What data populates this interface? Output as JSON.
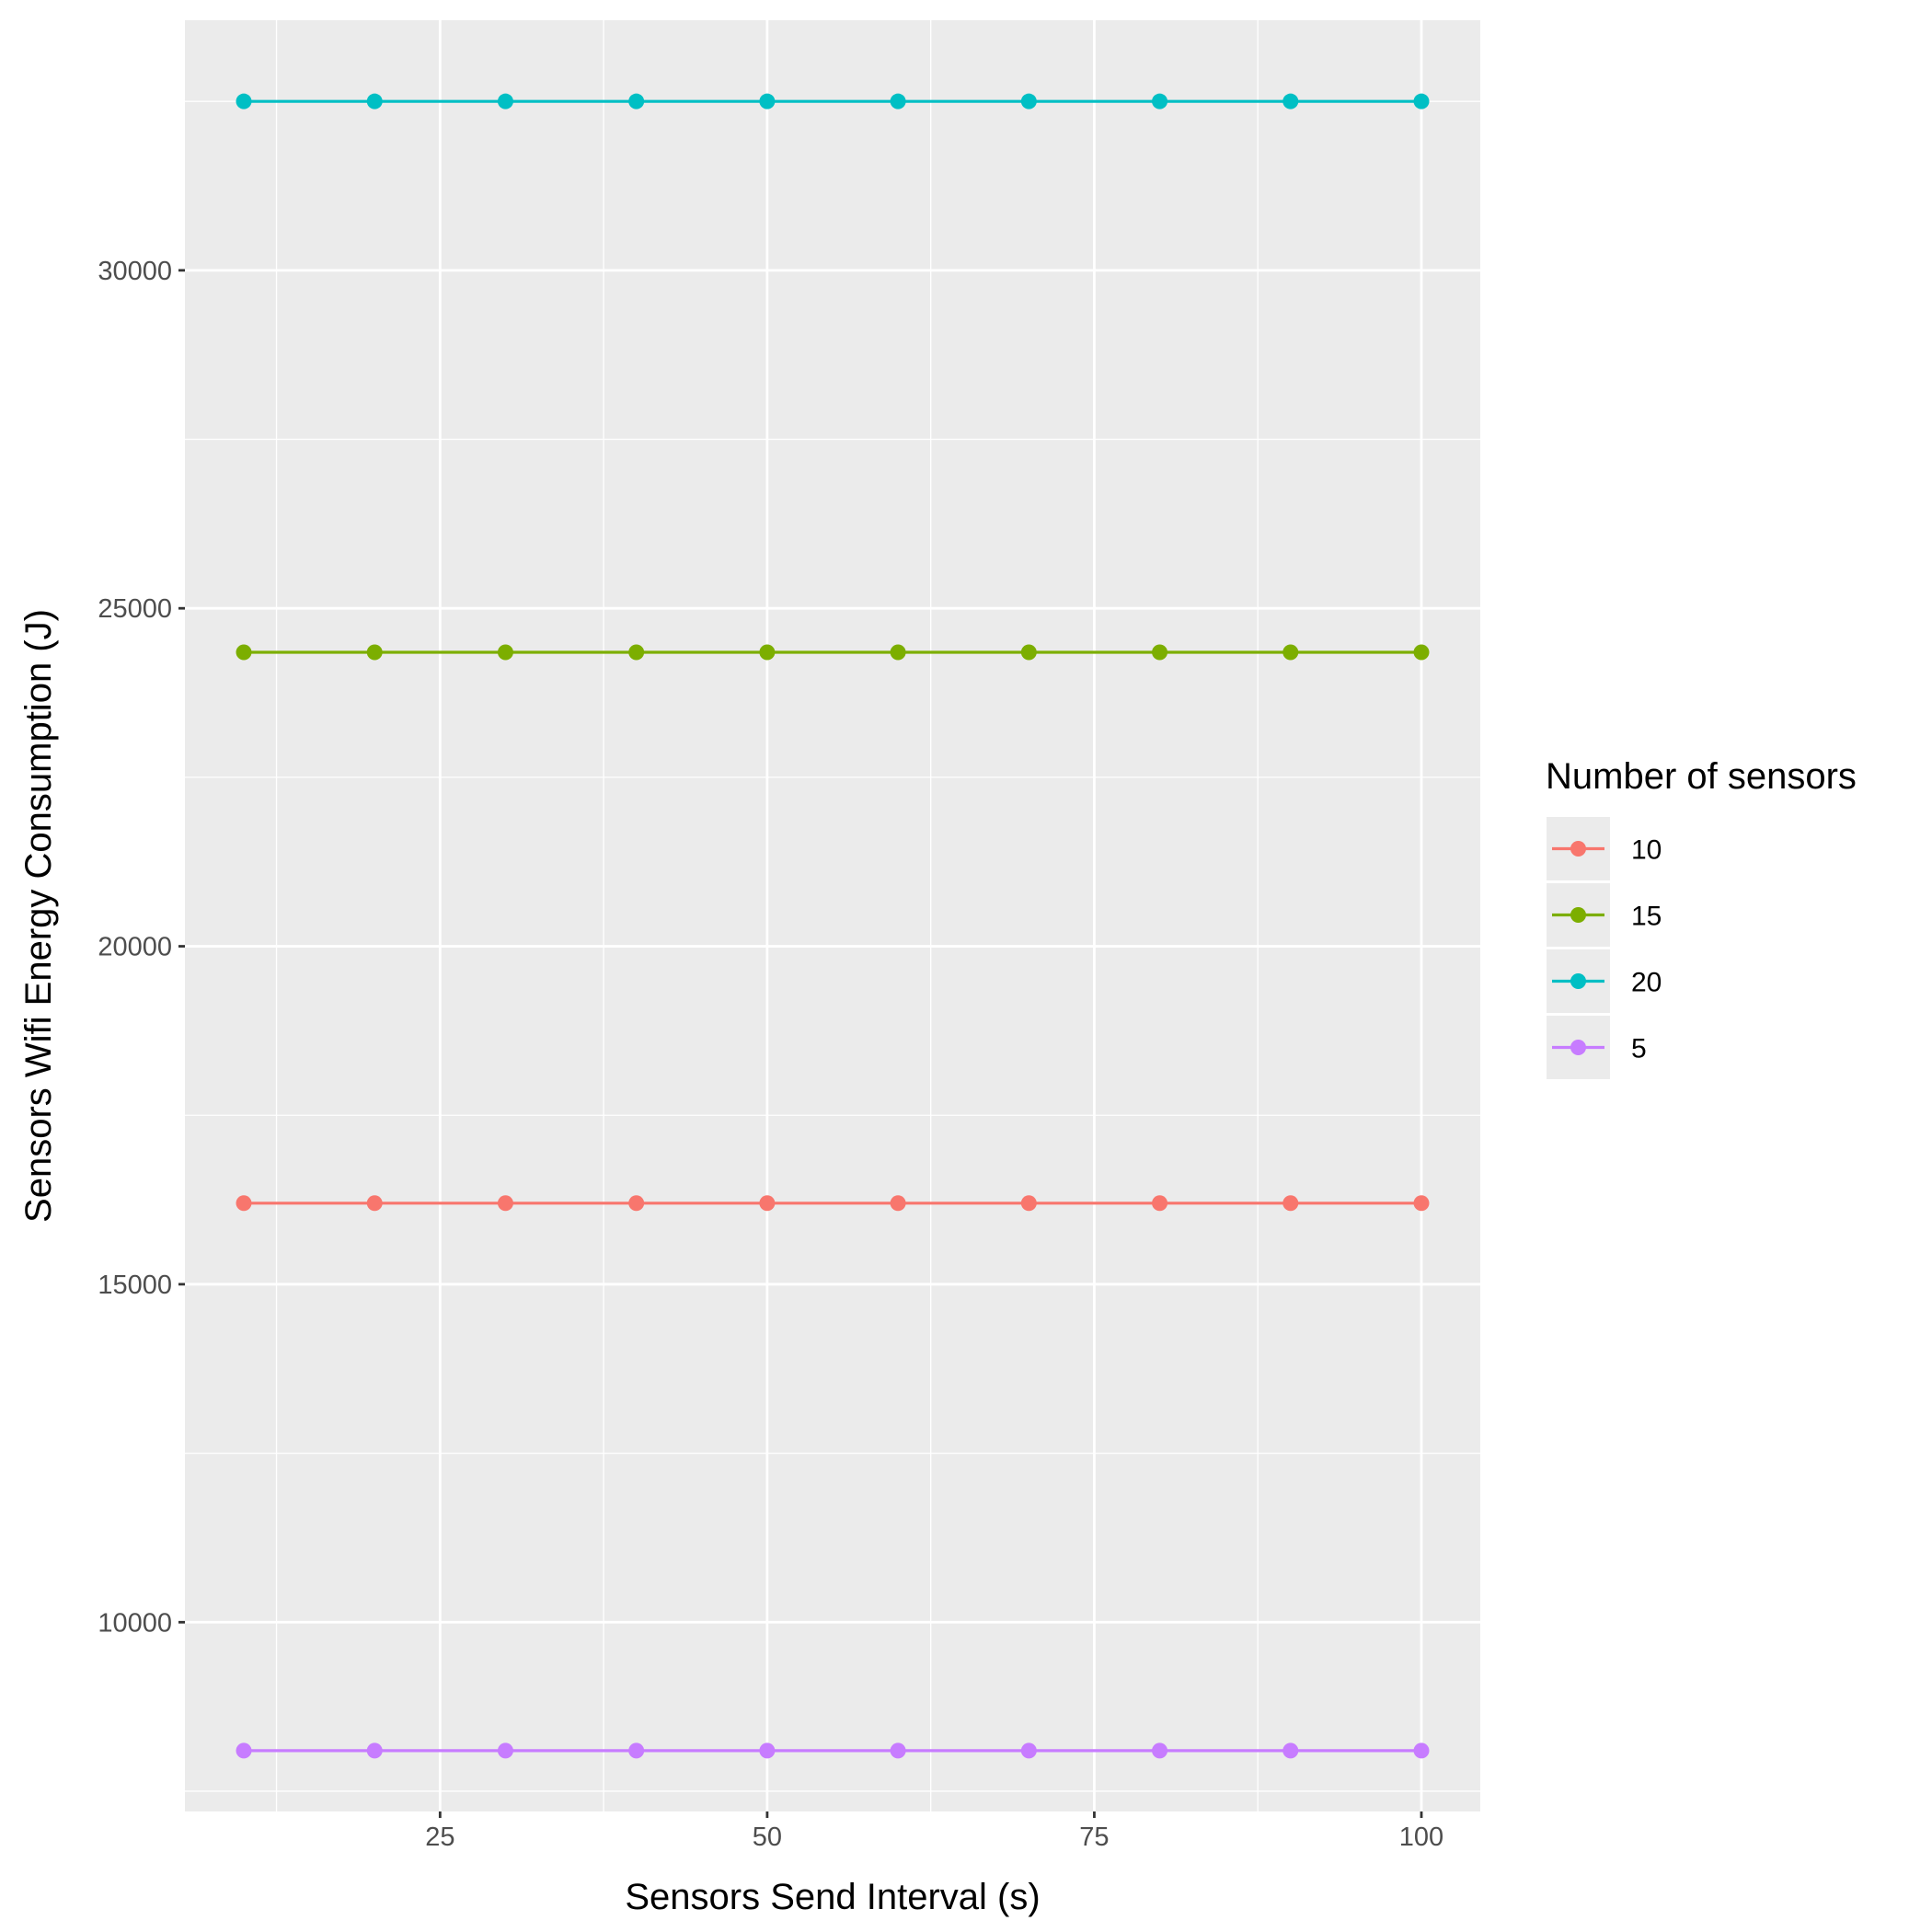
{
  "chart_data": {
    "type": "line",
    "x": [
      10,
      20,
      30,
      40,
      50,
      60,
      70,
      80,
      90,
      100
    ],
    "series": [
      {
        "name": "10",
        "color": "#F8766D",
        "values": [
          16200,
          16200,
          16200,
          16200,
          16200,
          16200,
          16200,
          16200,
          16200,
          16200
        ]
      },
      {
        "name": "15",
        "color": "#7CAE00",
        "values": [
          24350,
          24350,
          24350,
          24350,
          24350,
          24350,
          24350,
          24350,
          24350,
          24350
        ]
      },
      {
        "name": "20",
        "color": "#00BFC4",
        "values": [
          32500,
          32500,
          32500,
          32500,
          32500,
          32500,
          32500,
          32500,
          32500,
          32500
        ]
      },
      {
        "name": "5",
        "color": "#C77CFF",
        "values": [
          8100,
          8100,
          8100,
          8100,
          8100,
          8100,
          8100,
          8100,
          8100,
          8100
        ]
      }
    ],
    "title": "",
    "xlabel": "Sensors Send Interval (s)",
    "ylabel": "Sensors Wifi Energy Consumption (J)",
    "xlim": [
      5.5,
      104.5
    ],
    "ylim": [
      7200,
      33700
    ],
    "xticks": [
      25,
      50,
      75,
      100
    ],
    "yticks": [
      10000,
      15000,
      20000,
      25000,
      30000
    ],
    "grid": true,
    "legend_title": "Number of sensors",
    "legend_position": "right",
    "panel_background": "#EBEBEB",
    "gridline_color": "#FFFFFF"
  }
}
